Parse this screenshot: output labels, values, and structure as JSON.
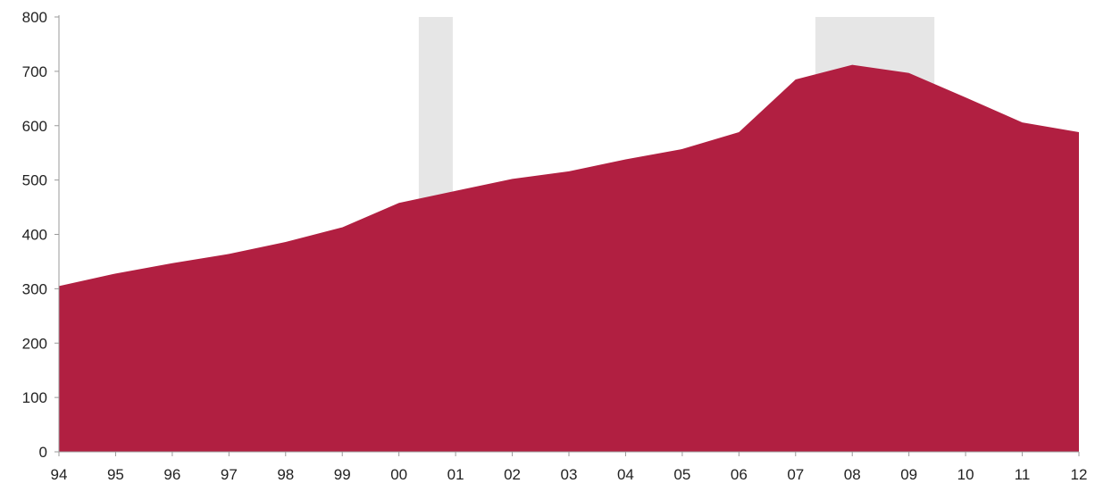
{
  "chart_data": {
    "type": "area",
    "title": "",
    "xlabel": "",
    "ylabel": "",
    "x": [
      "94",
      "95",
      "96",
      "97",
      "98",
      "99",
      "00",
      "01",
      "02",
      "03",
      "04",
      "05",
      "06",
      "07",
      "08",
      "09",
      "10",
      "11",
      "12"
    ],
    "series": [
      {
        "name": "",
        "color": "#b11f41",
        "values": [
          305,
          328,
          347,
          364,
          386,
          413,
          458,
          480,
          502,
          516,
          538,
          557,
          588,
          685,
          712,
          697,
          652,
          606,
          588
        ]
      }
    ],
    "shaded_periods": [
      {
        "start": 6.35,
        "end": 6.95,
        "color": "#e6e6e6"
      },
      {
        "start": 13.35,
        "end": 15.45,
        "color": "#e6e6e6"
      }
    ],
    "ylim": [
      0,
      800
    ],
    "yticks": [
      0,
      100,
      200,
      300,
      400,
      500,
      600,
      700,
      800
    ],
    "grid": false,
    "legend": "none"
  }
}
